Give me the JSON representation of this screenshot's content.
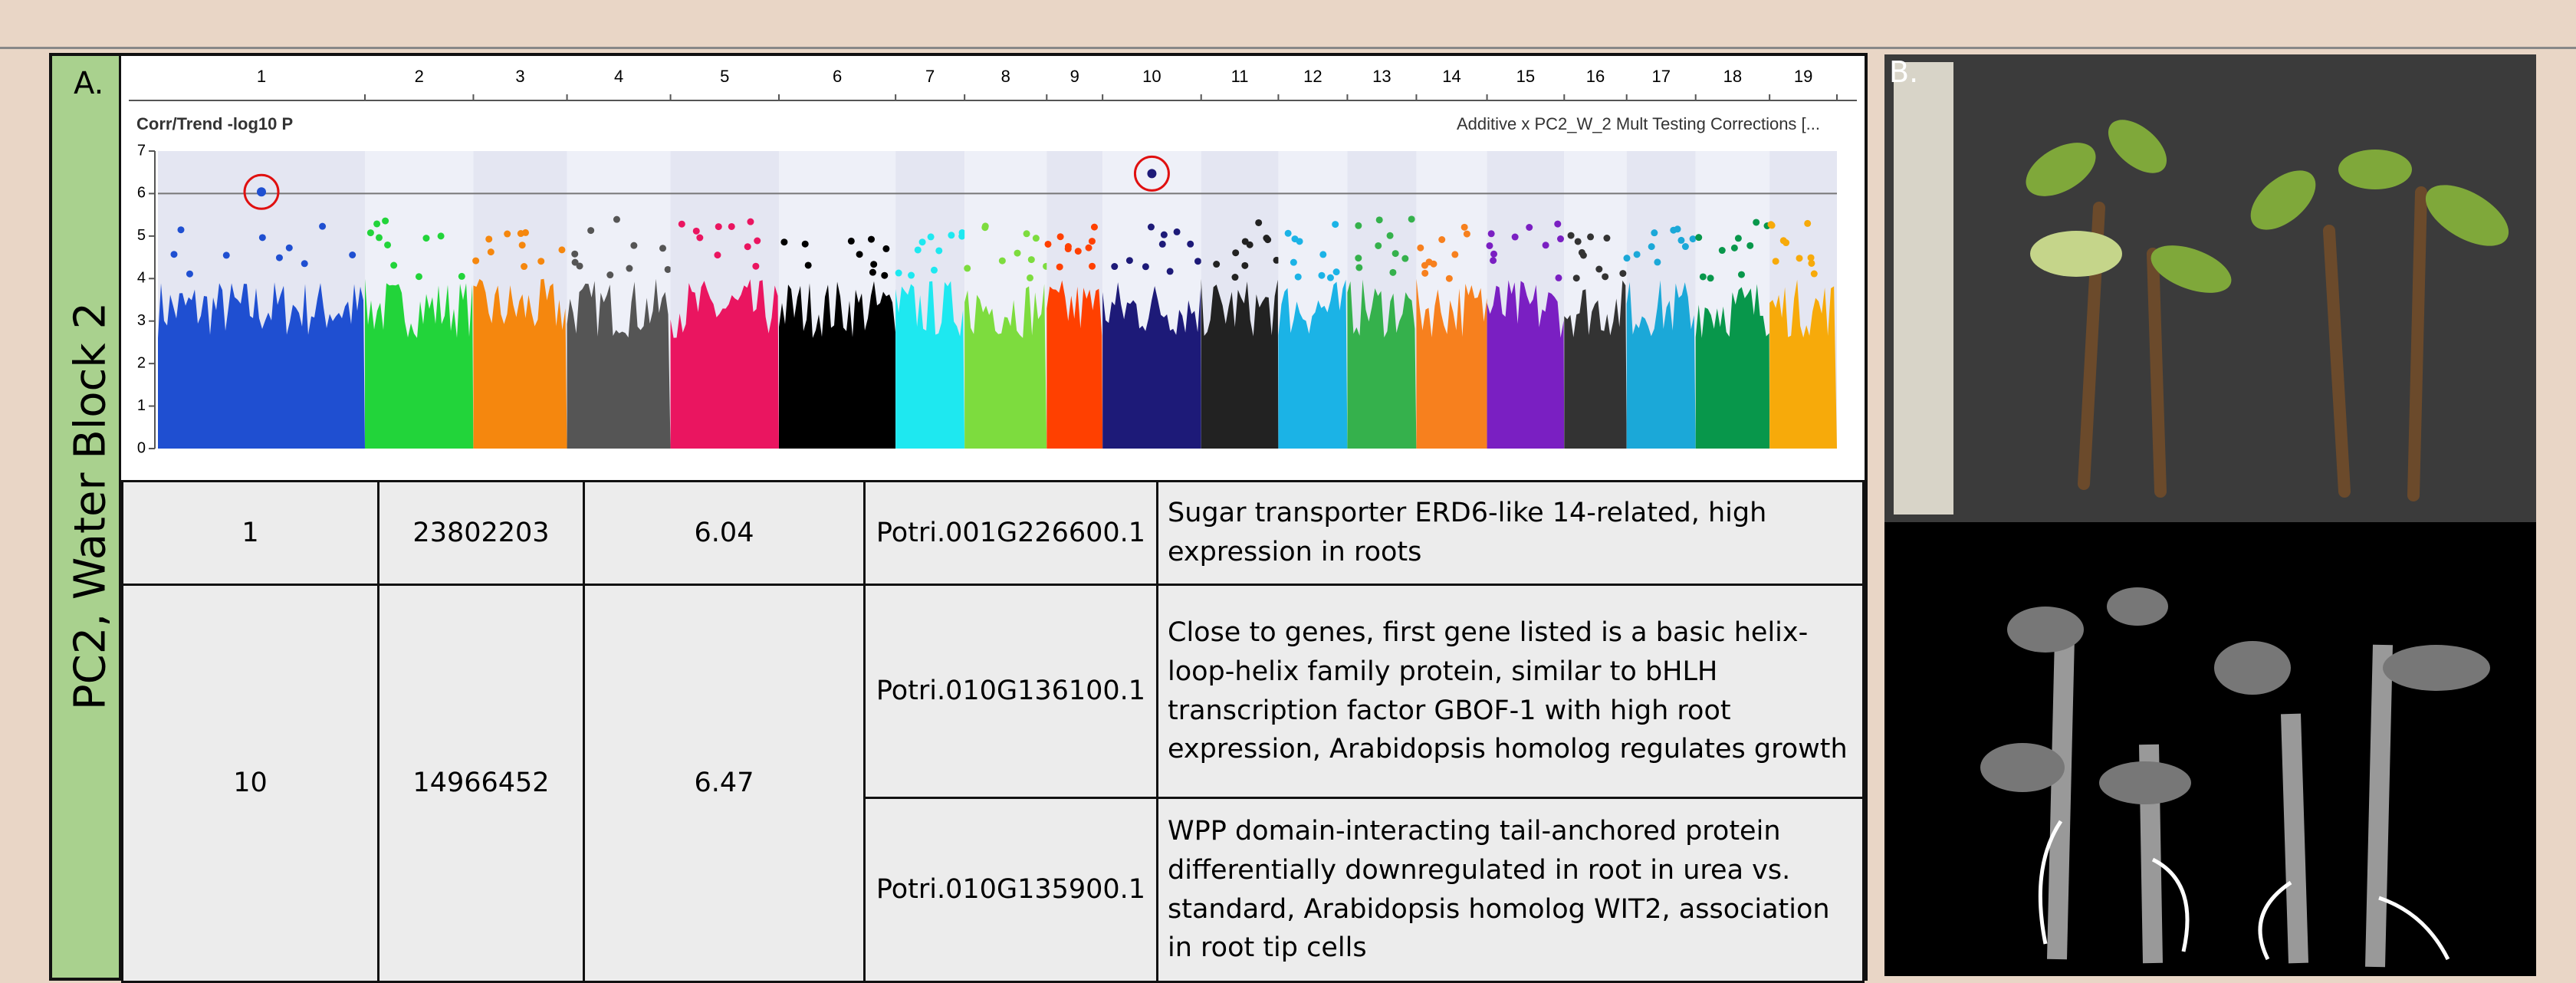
{
  "panel_a": {
    "label": "A.",
    "side_label": "PC2, Water Block 2",
    "plot": {
      "y_title": "Corr/Trend -log10 P",
      "legend": "Additive x PC2_W_2 Mult Testing Corrections [...",
      "ylim": [
        0,
        7
      ],
      "yticks": [
        0,
        1,
        2,
        3,
        4,
        5,
        6,
        7
      ],
      "threshold": 6,
      "chromosomes": [
        {
          "label": "1",
          "color": "#1f4fd1"
        },
        {
          "label": "2",
          "color": "#22d43a"
        },
        {
          "label": "3",
          "color": "#f5870e"
        },
        {
          "label": "4",
          "color": "#555555"
        },
        {
          "label": "5",
          "color": "#ea1560"
        },
        {
          "label": "6",
          "color": "#000000"
        },
        {
          "label": "7",
          "color": "#1ee8f0"
        },
        {
          "label": "8",
          "color": "#7ddc3e"
        },
        {
          "label": "9",
          "color": "#ff4000"
        },
        {
          "label": "10",
          "color": "#1d1a78"
        },
        {
          "label": "11",
          "color": "#222222"
        },
        {
          "label": "12",
          "color": "#1bb3e6"
        },
        {
          "label": "13",
          "color": "#35b14c"
        },
        {
          "label": "14",
          "color": "#f7801e"
        },
        {
          "label": "15",
          "color": "#7a1fc2"
        },
        {
          "label": "16",
          "color": "#333333"
        },
        {
          "label": "17",
          "color": "#1ba8d8"
        },
        {
          "label": "18",
          "color": "#08974b"
        },
        {
          "label": "19",
          "color": "#f7aa0a"
        }
      ],
      "hits": [
        {
          "chromosome": 0,
          "value": 6.04
        },
        {
          "chromosome": 9,
          "value": 6.47
        }
      ]
    },
    "table": {
      "rows": [
        {
          "chromosome": "1",
          "position": "23802203",
          "score": "6.04",
          "genes": [
            {
              "id": "Potri.001G226600.1",
              "description": "Sugar transporter ERD6-like 14-related, high expression in roots"
            }
          ]
        },
        {
          "chromosome": "10",
          "position": "14966452",
          "score": "6.47",
          "genes": [
            {
              "id": "Potri.010G136100.1",
              "description": "Close to genes, first gene listed is a basic helix-loop-helix family protein, similar to bHLH transcription factor GBOF-1 with high root expression, Arabidopsis homolog regulates growth"
            },
            {
              "id": "Potri.010G135900.1",
              "description": "WPP domain-interacting tail-anchored protein differentially downregulated in root in urea vs. standard, Arabidopsis homolog WIT2, association in root tip cells"
            }
          ]
        }
      ]
    }
  },
  "panel_b": {
    "label": "B."
  }
}
